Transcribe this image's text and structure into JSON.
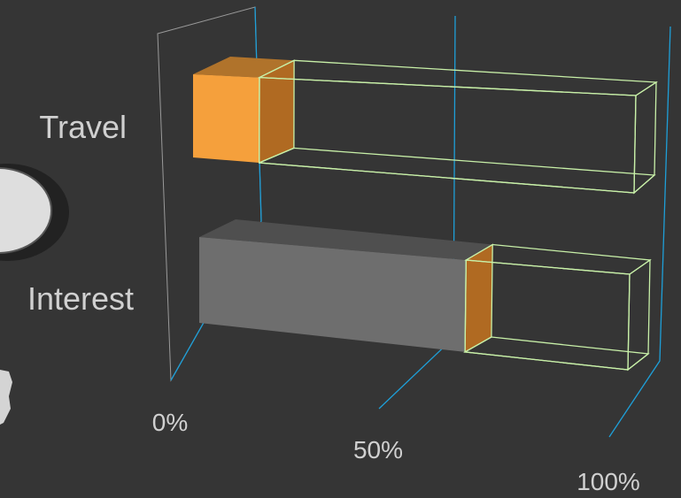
{
  "chart_data": {
    "type": "bar",
    "orientation": "horizontal",
    "style": "3d",
    "categories": [
      "Travel",
      "Interest"
    ],
    "values": [
      15,
      62
    ],
    "xlim": [
      0,
      100
    ],
    "x_ticks": [
      "0%",
      "50%",
      "100%"
    ],
    "grid": true,
    "bar_colors": [
      "#F5A03C",
      "#6E6E6E"
    ],
    "track_outline_color": "#C8F0A8",
    "grid_color": "#1E9FD8"
  }
}
